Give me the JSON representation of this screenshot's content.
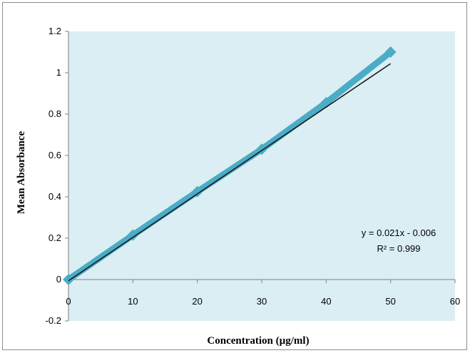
{
  "chart_data": {
    "type": "scatter",
    "title": "",
    "xlabel": "Concentration (µg/ml)",
    "ylabel": "Mean Absorbance",
    "xlim": [
      0,
      60
    ],
    "ylim": [
      -0.2,
      1.2
    ],
    "x_ticks": [
      "0",
      "10",
      "20",
      "30",
      "40",
      "50",
      "60"
    ],
    "y_ticks": [
      "-0.2",
      "0",
      "0.2",
      "0.4",
      "0.6",
      "0.8",
      "1",
      "1.2"
    ],
    "grid": false,
    "legend": "none",
    "series": [
      {
        "x": [
          0,
          10,
          20,
          30,
          40,
          50
        ],
        "y": [
          0,
          0.215,
          0.425,
          0.63,
          0.855,
          1.1
        ],
        "marker": "diamond",
        "color": "#4bacc6",
        "connected": true
      }
    ],
    "trendline": {
      "type": "linear",
      "slope": 0.021,
      "intercept": -0.006,
      "color": "#1a1a1a",
      "equation_label": "y = 0.021x - 0.006",
      "r2_label": "R² = 0.999"
    },
    "plot_background": "#dbeef3"
  }
}
